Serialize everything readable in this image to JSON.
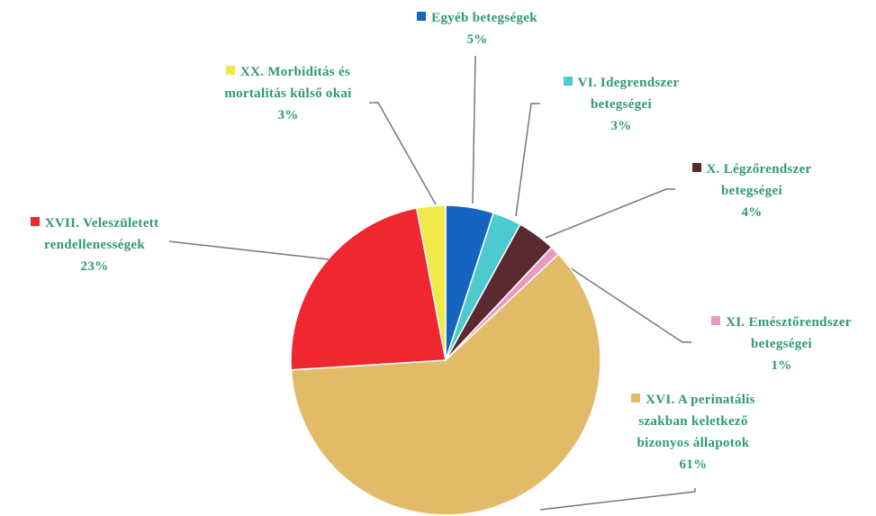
{
  "chart_data": {
    "type": "pie",
    "categories": [
      "Egyéb betegségek",
      "VI. Idegrendszer betegségei",
      "X. Légzőrendszer betegségei",
      "XI. Emésztőrendszer betegségei",
      "XVI. A perinatális szakban keletkező bizonyos állapotok",
      "XVII. Veleszületett rendellenességek",
      "XX. Morbiditás és mortalitás külső okai"
    ],
    "values": [
      5,
      3,
      4,
      1,
      61,
      23,
      3
    ],
    "value_labels": [
      "5%",
      "3%",
      "4%",
      "1%",
      "61%",
      "23%",
      "3%"
    ],
    "colors": [
      "#1565c0",
      "#4ec9cf",
      "#5b2a30",
      "#e89ac0",
      "#e2bb68",
      "#ee2730",
      "#f3e84a"
    ]
  }
}
